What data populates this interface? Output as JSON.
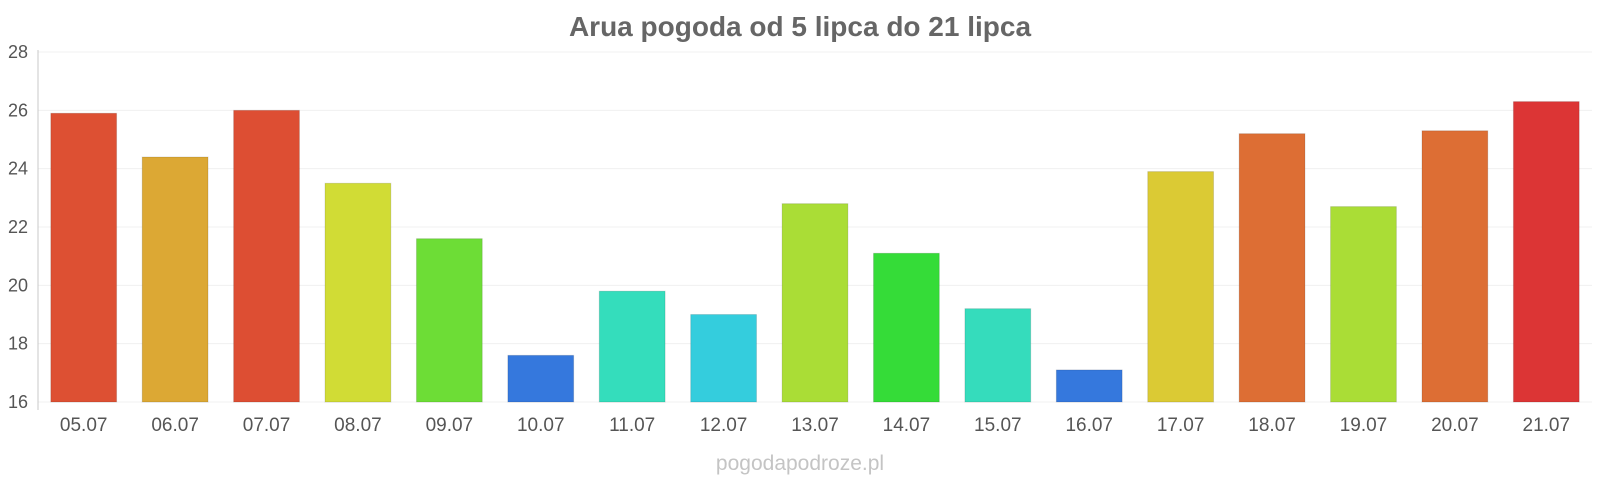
{
  "chart_data": {
    "type": "bar",
    "title": "Arua pogoda od 5 lipca do 21 lipca",
    "categories": [
      "05.07",
      "06.07",
      "07.07",
      "08.07",
      "09.07",
      "10.07",
      "11.07",
      "12.07",
      "13.07",
      "14.07",
      "15.07",
      "16.07",
      "17.07",
      "18.07",
      "19.07",
      "20.07",
      "21.07"
    ],
    "values": [
      25.9,
      24.4,
      26.0,
      23.5,
      21.6,
      17.6,
      19.8,
      19.0,
      22.8,
      21.1,
      19.2,
      17.1,
      23.9,
      25.2,
      22.7,
      25.3,
      26.3
    ],
    "colors": [
      "#dd5033",
      "#dca834",
      "#dd4e33",
      "#d1dc35",
      "#6ddd36",
      "#3578dd",
      "#34ddbc",
      "#34cddd",
      "#aadd36",
      "#35dc38",
      "#35dcbc",
      "#3578dd",
      "#dbca34",
      "#dd6e34",
      "#aadd36",
      "#dd6e34",
      "#dc3535"
    ],
    "ylim": [
      16,
      28
    ],
    "yticks": [
      16,
      18,
      20,
      22,
      24,
      26,
      28
    ],
    "xlabel": "",
    "ylabel": "",
    "grid": true
  },
  "watermark": "pogodapodroze.pl"
}
